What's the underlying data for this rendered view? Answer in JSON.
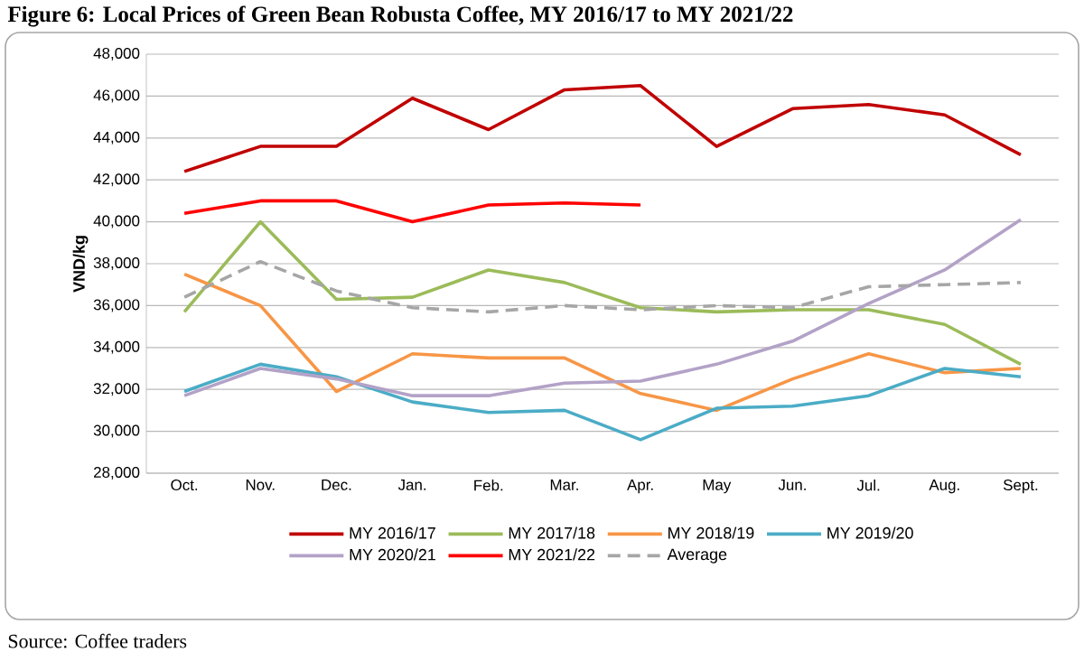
{
  "chart_data": {
    "type": "line",
    "title": "Figure 6: Local Prices of Green Bean Robusta Coffee, MY 2016/17 to MY 2021/22",
    "ylabel": "VND/kg",
    "categories": [
      "Oct.",
      "Nov.",
      "Dec.",
      "Jan.",
      "Feb.",
      "Mar.",
      "Apr.",
      "May",
      "Jun.",
      "Jul.",
      "Aug.",
      "Sept."
    ],
    "series": [
      {
        "name": "MY 2016/17",
        "color": "#c00000",
        "values": [
          42400,
          43600,
          43600,
          45900,
          44400,
          46300,
          46500,
          43600,
          45400,
          45600,
          45100,
          43200
        ]
      },
      {
        "name": "MY 2017/18",
        "color": "#9bbb59",
        "values": [
          35700,
          40000,
          36300,
          36400,
          37700,
          37100,
          35900,
          35700,
          35800,
          35800,
          35100,
          33200
        ]
      },
      {
        "name": "MY 2018/19",
        "color": "#f79646",
        "values": [
          37500,
          36000,
          31900,
          33700,
          33500,
          33500,
          31800,
          31000,
          32500,
          33700,
          32800,
          33000
        ]
      },
      {
        "name": "MY 2019/20",
        "color": "#4bacc6",
        "values": [
          31900,
          33200,
          32600,
          31400,
          30900,
          31000,
          29600,
          31100,
          31200,
          31700,
          33000,
          32600
        ]
      },
      {
        "name": "MY 2020/21",
        "color": "#b3a2c7",
        "values": [
          31700,
          33000,
          32500,
          31700,
          31700,
          32300,
          32400,
          33200,
          34300,
          36100,
          37700,
          40100
        ]
      },
      {
        "name": "MY 2021/22",
        "color": "#ff0000",
        "values": [
          40400,
          41000,
          41000,
          40000,
          40800,
          40900,
          40800,
          null,
          null,
          null,
          null,
          null
        ]
      },
      {
        "name": "Average",
        "color": "#a6a6a6",
        "line_style": "dashed",
        "values": [
          36400,
          38100,
          36700,
          35900,
          35700,
          36000,
          35800,
          36000,
          35900,
          36900,
          37000,
          37100
        ]
      }
    ],
    "ylim": [
      28000,
      48000
    ],
    "yticks": [
      {
        "value": 28000,
        "label": "28,000"
      },
      {
        "value": 30000,
        "label": "30,000"
      },
      {
        "value": 32000,
        "label": "32,000"
      },
      {
        "value": 34000,
        "label": "34,000"
      },
      {
        "value": 36000,
        "label": "36,000"
      },
      {
        "value": 38000,
        "label": "38,000"
      },
      {
        "value": 40000,
        "label": "40,000"
      },
      {
        "value": 42000,
        "label": "42,000"
      },
      {
        "value": 44000,
        "label": "44,000"
      },
      {
        "value": 46000,
        "label": "46,000"
      },
      {
        "value": 48000,
        "label": "48,000"
      }
    ],
    "grid": "y",
    "legend": "bottom",
    "marker": "none",
    "line_style": "solid",
    "annotations": [
      "Source: Coffee traders"
    ]
  }
}
